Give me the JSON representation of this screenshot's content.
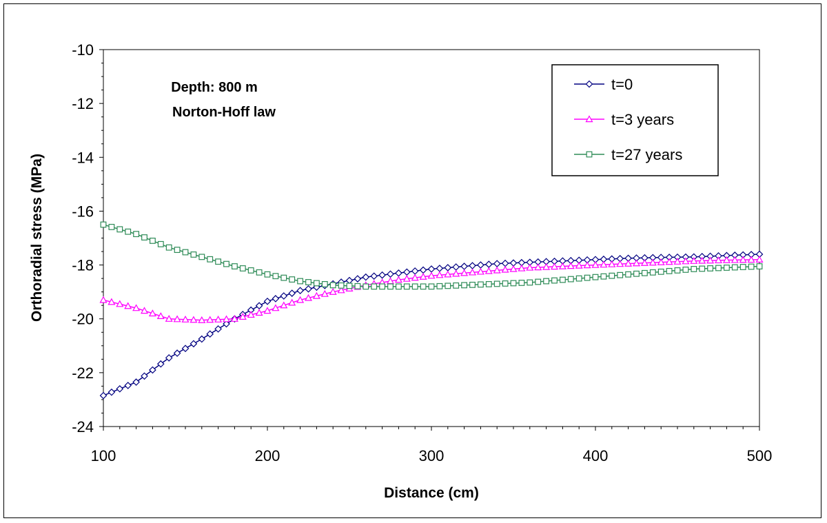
{
  "chart_data": {
    "type": "line",
    "xlabel": "Distance (cm)",
    "ylabel": "Orthoradial stress (MPa)",
    "xlim": [
      100,
      500
    ],
    "ylim": [
      -24,
      -10
    ],
    "xticks": [
      100,
      200,
      300,
      400,
      500
    ],
    "yticks": [
      -24,
      -22,
      -20,
      -18,
      -16,
      -14,
      -12,
      -10
    ],
    "xtick_labels": [
      "100",
      "200",
      "300",
      "400",
      "500"
    ],
    "ytick_labels": [
      "-24",
      "-22",
      "-20",
      "-18",
      "-16",
      "-14",
      "-12",
      "-10"
    ],
    "annotations": [
      "Depth: 800 m",
      "Norton-Hoff law"
    ],
    "legend_position": "top-right",
    "series": [
      {
        "name": "t=0",
        "color": "#000080",
        "marker": "diamond",
        "x": [
          100,
          120,
          140,
          160,
          180,
          200,
          220,
          240,
          260,
          280,
          300,
          320,
          340,
          360,
          380,
          400,
          420,
          440,
          460,
          480,
          500
        ],
        "y": [
          -22.85,
          -22.35,
          -21.45,
          -20.75,
          -20.0,
          -19.35,
          -18.95,
          -18.7,
          -18.45,
          -18.3,
          -18.15,
          -18.05,
          -17.95,
          -17.9,
          -17.85,
          -17.8,
          -17.75,
          -17.72,
          -17.7,
          -17.65,
          -17.6
        ]
      },
      {
        "name": "t=3 years",
        "color": "#ff00ff",
        "marker": "triangle",
        "x": [
          100,
          120,
          140,
          160,
          180,
          200,
          220,
          240,
          260,
          280,
          300,
          320,
          340,
          360,
          380,
          400,
          420,
          440,
          460,
          480,
          500
        ],
        "y": [
          -19.3,
          -19.6,
          -20.0,
          -20.05,
          -20.0,
          -19.7,
          -19.3,
          -19.0,
          -18.75,
          -18.55,
          -18.4,
          -18.3,
          -18.2,
          -18.1,
          -18.05,
          -18.0,
          -17.95,
          -17.9,
          -17.85,
          -17.82,
          -17.8
        ]
      },
      {
        "name": "t=27 years",
        "color": "#2e8b57",
        "marker": "square",
        "x": [
          100,
          120,
          140,
          160,
          180,
          200,
          220,
          240,
          260,
          280,
          300,
          320,
          340,
          360,
          380,
          400,
          420,
          440,
          460,
          480,
          500
        ],
        "y": [
          -16.5,
          -16.85,
          -17.35,
          -17.7,
          -18.05,
          -18.35,
          -18.6,
          -18.75,
          -18.8,
          -18.8,
          -18.8,
          -18.75,
          -18.7,
          -18.65,
          -18.55,
          -18.45,
          -18.35,
          -18.25,
          -18.15,
          -18.1,
          -18.05
        ]
      }
    ]
  }
}
